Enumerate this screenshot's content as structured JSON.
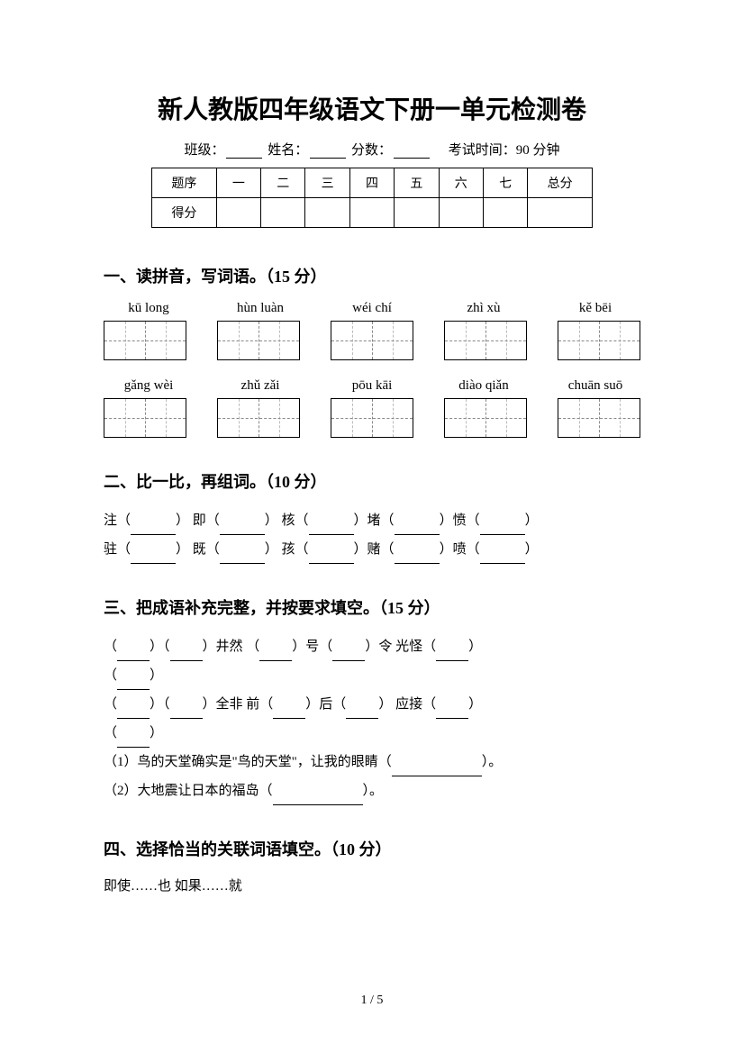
{
  "title": "新人教版四年级语文下册一单元检测卷",
  "info": {
    "class_label": "班级：",
    "name_label": "姓名：",
    "score_label": "分数：",
    "time_label": "考试时间：90 分钟"
  },
  "score_table": {
    "headers": [
      "题序",
      "一",
      "二",
      "三",
      "四",
      "五",
      "六",
      "七",
      "总分"
    ],
    "row_label": "得分"
  },
  "section1": {
    "title": "一、读拼音，写词语。（15 分）",
    "row1_pinyin": [
      "kū long",
      "hùn luàn",
      "wéi chí",
      "zhì xù",
      "kě bēi"
    ],
    "row2_pinyin": [
      "gǎng wèi",
      "zhǔ zǎi",
      "pōu kāi",
      "diào qiǎn",
      "chuān suō"
    ]
  },
  "section2": {
    "title": "二、比一比，再组词。（10 分）",
    "line1": [
      "注（",
      "） 即（",
      "） 核（",
      "）堵（",
      "）愤（",
      "）"
    ],
    "line2": [
      "驻（",
      "） 既（",
      "） 孩（",
      "）赌（",
      "）喷（",
      "）"
    ]
  },
  "section3": {
    "title": "三、把成语补充完整，并按要求填空。（15 分）",
    "line1_parts": [
      "（",
      "）（",
      "）井然  （",
      "）号（",
      "）令   光怪（",
      "）"
    ],
    "line2_parts": [
      "（",
      "）"
    ],
    "line3_parts": [
      "（",
      "）（",
      "）全非   前（",
      "）后（",
      "）   应接（",
      "）"
    ],
    "line4_parts": [
      "（",
      "）"
    ],
    "line5_prefix": "（1）鸟的天堂确实是\"鸟的天堂\"，让我的眼睛（",
    "line5_suffix": "）。",
    "line6_prefix": "（2）大地震让日本的福岛（",
    "line6_suffix": "）。"
  },
  "section4": {
    "title": "四、选择恰当的关联词语填空。（10 分）",
    "options": "即使……也      如果……就"
  },
  "page_num": "1 / 5"
}
